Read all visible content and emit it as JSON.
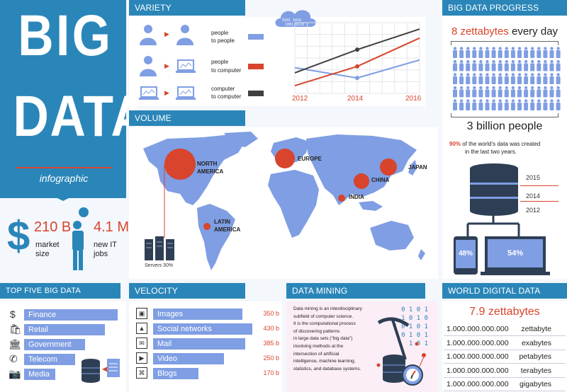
{
  "title": {
    "big": "BIG",
    "data": "DATA",
    "sub": "infographic"
  },
  "stats": {
    "market_value": "210 B",
    "market_label1": "market",
    "market_label2": "size",
    "jobs_value": "4.1 M",
    "jobs_label1": "new IT",
    "jobs_label2": "jobs"
  },
  "variety": {
    "header": "VARIETY",
    "rows": [
      {
        "label1": "people",
        "label2": "to people",
        "color": "#7f9ee3"
      },
      {
        "label1": "people",
        "label2": "to computer",
        "color": "#d8442c"
      },
      {
        "label1": "computer",
        "label2": "to computer",
        "color": "#404040"
      }
    ],
    "years": [
      "2012",
      "2014",
      "2016"
    ]
  },
  "chart_data": {
    "type": "line",
    "x": [
      "2012",
      "2014",
      "2016"
    ],
    "series": [
      {
        "values": [
          2,
          1.2,
          2.6
        ],
        "color": "#7f9ee3"
      },
      {
        "values": [
          0.6,
          2.1,
          4.3
        ],
        "color": "#d8442c"
      },
      {
        "values": [
          1.6,
          3.4,
          5
        ],
        "color": "#404040"
      }
    ],
    "ylim": [
      0,
      5.5
    ]
  },
  "volume": {
    "header": "VOLUME",
    "regions": [
      "NORTH AMERICA",
      "EUROPE",
      "JAPAN",
      "CHINA",
      "INDIA",
      "LATIN AMERICA"
    ],
    "servers": "Servers 30%"
  },
  "progress": {
    "header": "BIG DATA PROGRESS",
    "zb_value": "8 zettabytes",
    "zb_rest": "every day",
    "people": "3 billion people",
    "pct": "90%",
    "pct_text1": "of the world's data was created",
    "pct_text2": "in the last two years.",
    "years": [
      "2015",
      "2014",
      "2012"
    ],
    "phone": "48%",
    "laptop": "54%"
  },
  "applications": {
    "header": "TOP FIVE BIG DATA APPLICATIONS",
    "items": [
      "Finance",
      "Retail",
      "Government",
      "Telecom",
      "Media"
    ]
  },
  "velocity": {
    "header": "VELOCITY",
    "items": [
      {
        "label": "Images",
        "value": "350 b"
      },
      {
        "label": "Social networks",
        "value": "430 b"
      },
      {
        "label": "Mail",
        "value": "385 b"
      },
      {
        "label": "Video",
        "value": "250 b"
      },
      {
        "label": "Blogs",
        "value": "170 b"
      }
    ]
  },
  "mining": {
    "header": "DATA MINING",
    "lines": [
      "Data mining is an interdisciplinary",
      "subfield of computer science.",
      "It is the computational process",
      "of discovering patterns",
      "in large data sets (\"big data\")",
      "involving methods at the",
      "intersection of artificial",
      "intelligence, machine learning,",
      "statistics, and database systems."
    ],
    "binary": [
      "0 1 0 1",
      "1 0 1 0",
      "1 0 1 0 1",
      "0 1 0 1",
      "1 0 1"
    ]
  },
  "world": {
    "header": "WORLD DIGITAL DATA",
    "total": "7.9 zettabytes",
    "rows": [
      {
        "num": "1.000.000.000.000",
        "unit": "zettabyte"
      },
      {
        "num": "1.000.000.000.000",
        "unit": "exabytes"
      },
      {
        "num": "1.000.000.000.000",
        "unit": "petabytes"
      },
      {
        "num": "1.000.000.000.000",
        "unit": "terabytes"
      },
      {
        "num": "1.000.000.000.000",
        "unit": "gigabytes"
      }
    ]
  },
  "colors": {
    "blue": "#2a86b9",
    "bar": "#7f9ee3",
    "red": "#d8442c",
    "dark": "#404040"
  }
}
